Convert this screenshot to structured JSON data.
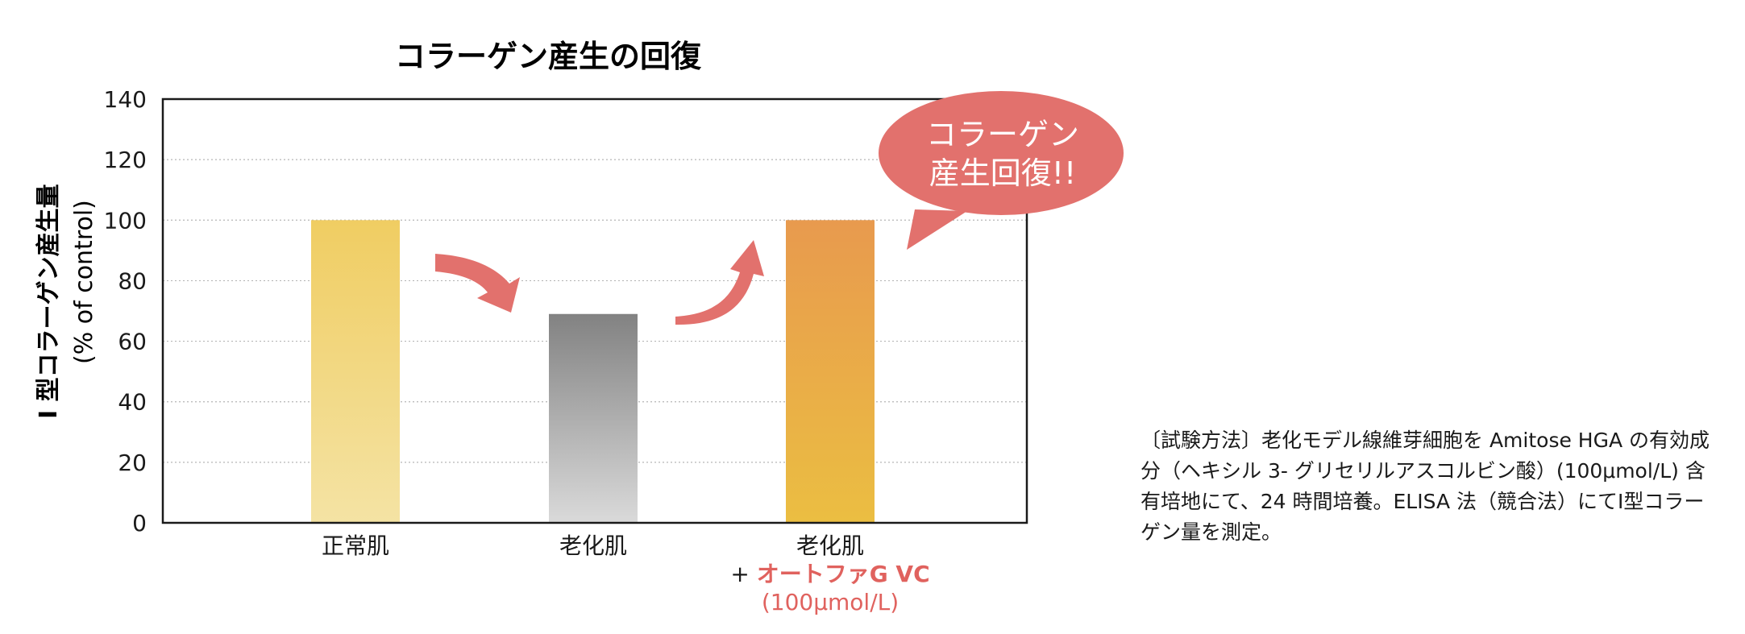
{
  "chart_data": {
    "type": "bar",
    "title": "コラーゲン産生の回復",
    "ylabel_line1": "Ⅰ 型コラーゲン産生量",
    "ylabel_line2": "(% of control)",
    "ylim": [
      0,
      140
    ],
    "yticks": [
      0,
      20,
      40,
      60,
      80,
      100,
      120,
      140
    ],
    "grid": true,
    "categories": [
      "正常肌",
      "老化肌",
      "老化肌"
    ],
    "category_extra": {
      "prefix": "+ ",
      "product": "オートファG VC",
      "dose": "(100μmol/L)"
    },
    "values": [
      100,
      69,
      100
    ],
    "bar_colors": [
      [
        "#f0cd62",
        "#f4e3a4"
      ],
      [
        "#828282",
        "#dadada"
      ],
      [
        "#e89a4e",
        "#ebbe42"
      ]
    ],
    "callout": {
      "line1": "コラーゲン",
      "line2": "産生回復!!",
      "color": "#e2716d"
    },
    "arrow_color": "#e2716d",
    "accent_text_color": "#e0625e"
  },
  "note": {
    "text": "〔試験方法〕老化モデル線維芽細胞を Amitose HGA の有効成分（ヘキシル 3- グリセリルアスコルビン酸）(100μmol/L) 含有培地にて、24 時間培養。ELISA 法（競合法）にてⅠ型コラーゲン量を測定。"
  }
}
